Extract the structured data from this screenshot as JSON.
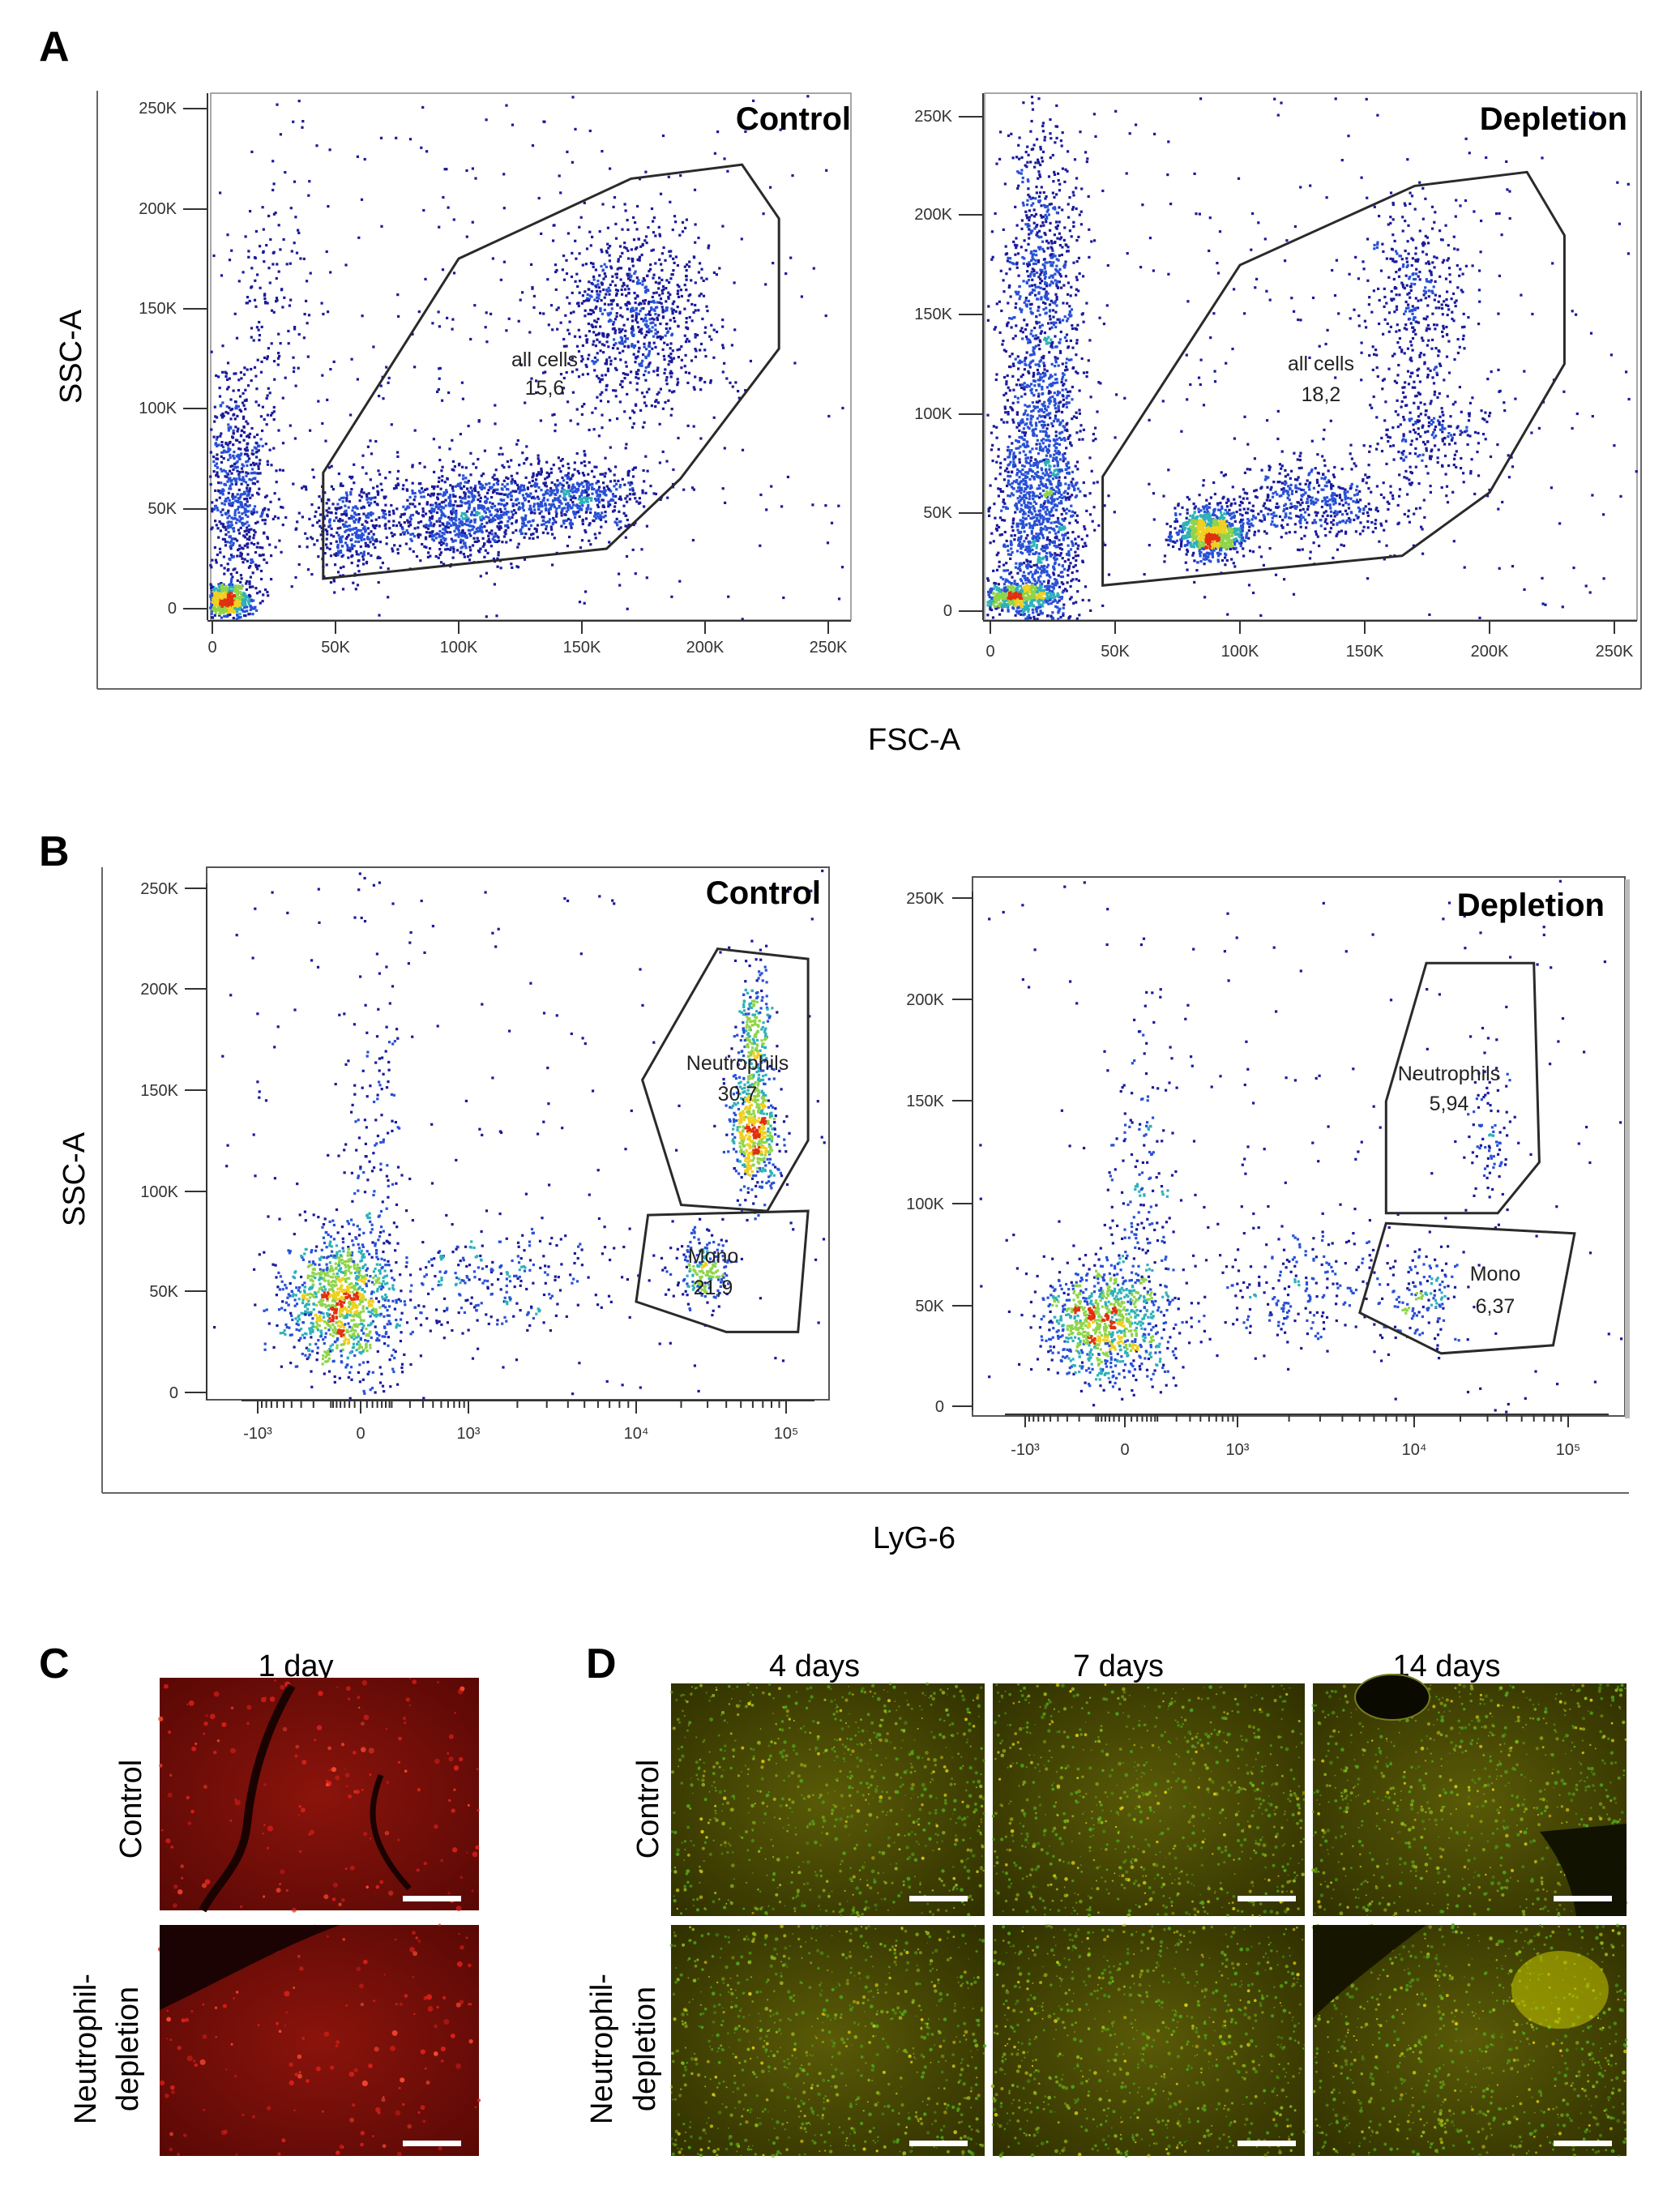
{
  "panels": {
    "A": {
      "letter": "A",
      "y_axis_title": "SSC-A",
      "x_axis_title": "FSC-A",
      "plots": [
        {
          "title": "Control",
          "gate_name": "all cells",
          "gate_value": "15,6"
        },
        {
          "title": "Depletion",
          "gate_name": "all cells",
          "gate_value": "18,2"
        }
      ],
      "y_ticks": [
        "0",
        "50K",
        "100K",
        "150K",
        "200K",
        "250K"
      ],
      "x_ticks": [
        "0",
        "50K",
        "100K",
        "150K",
        "200K",
        "250K"
      ]
    },
    "B": {
      "letter": "B",
      "y_axis_title": "SSC-A",
      "x_axis_title": "LyG-6",
      "plots": [
        {
          "title": "Control",
          "gates": [
            {
              "name": "Neutrophils",
              "value": "30,7"
            },
            {
              "name": "Mono",
              "value": "21,9"
            }
          ]
        },
        {
          "title": "Depletion",
          "gates": [
            {
              "name": "Neutrophils",
              "value": "5,94"
            },
            {
              "name": "Mono",
              "value": "6,37"
            }
          ]
        }
      ],
      "y_ticks": [
        "0",
        "50K",
        "100K",
        "150K",
        "200K",
        "250K"
      ],
      "x_ticks": [
        "-10³",
        "0",
        "10³",
        "10⁴",
        "10⁵"
      ]
    },
    "C": {
      "letter": "C",
      "column_label": "1 day",
      "row_labels": [
        "Control",
        "Neutrophil-",
        "depletion"
      ]
    },
    "D": {
      "letter": "D",
      "column_labels": [
        "4 days",
        "7 days",
        "14 days"
      ],
      "row_labels": [
        "Control",
        "Neutrophil-",
        "depletion"
      ]
    }
  },
  "chart_data": [
    {
      "panel": "A",
      "type": "scatter",
      "subtype": "flow-cytometry-density",
      "title": "Control",
      "xlabel": "FSC-A",
      "ylabel": "SSC-A",
      "xlim": [
        0,
        260000
      ],
      "ylim": [
        0,
        260000
      ],
      "ticks": [
        0,
        50000,
        100000,
        150000,
        200000,
        250000
      ],
      "gate": {
        "name": "all cells",
        "percent": 15.6,
        "polygon": [
          [
            45000,
            15000
          ],
          [
            45000,
            68000
          ],
          [
            100000,
            175000
          ],
          [
            170000,
            215000
          ],
          [
            215000,
            222000
          ],
          [
            230000,
            195000
          ],
          [
            230000,
            130000
          ],
          [
            190000,
            65000
          ],
          [
            160000,
            30000
          ]
        ]
      },
      "clusters": [
        {
          "x": 5000,
          "y": 5000,
          "sx": 5000,
          "sy": 4000,
          "n": 600
        },
        {
          "x": 10000,
          "y": 60000,
          "sx": 7000,
          "sy": 30000,
          "n": 700
        },
        {
          "x": 55000,
          "y": 40000,
          "sx": 9000,
          "sy": 12000,
          "n": 350
        },
        {
          "x": 100000,
          "y": 48000,
          "sx": 16000,
          "sy": 12000,
          "n": 800
        },
        {
          "x": 145000,
          "y": 56000,
          "sx": 16000,
          "sy": 9000,
          "n": 600
        },
        {
          "x": 170000,
          "y": 145000,
          "sx": 16000,
          "sy": 25000,
          "n": 850
        },
        {
          "x": 25000,
          "y": 160000,
          "sx": 8000,
          "sy": 30000,
          "n": 120
        },
        {
          "x": 130000,
          "y": 130000,
          "sx": 70000,
          "sy": 60000,
          "n": 200
        }
      ]
    },
    {
      "panel": "A",
      "type": "scatter",
      "subtype": "flow-cytometry-density",
      "title": "Depletion",
      "xlabel": "FSC-A",
      "ylabel": "SSC-A",
      "xlim": [
        0,
        260000
      ],
      "ylim": [
        0,
        260000
      ],
      "ticks": [
        0,
        50000,
        100000,
        150000,
        200000,
        250000
      ],
      "gate": {
        "name": "all cells",
        "percent": 18.2,
        "polygon": [
          [
            45000,
            13000
          ],
          [
            45000,
            68000
          ],
          [
            100000,
            175000
          ],
          [
            170000,
            215000
          ],
          [
            215000,
            222000
          ],
          [
            230000,
            190000
          ],
          [
            230000,
            125000
          ],
          [
            200000,
            60000
          ],
          [
            165000,
            28000
          ]
        ]
      },
      "clusters": [
        {
          "x": 20000,
          "y": 55000,
          "sx": 9000,
          "sy": 40000,
          "n": 1600
        },
        {
          "x": 20000,
          "y": 170000,
          "sx": 8000,
          "sy": 40000,
          "n": 700
        },
        {
          "x": 10000,
          "y": 8000,
          "sx": 7000,
          "sy": 4000,
          "n": 500
        },
        {
          "x": 88000,
          "y": 40000,
          "sx": 7000,
          "sy": 6000,
          "n": 900
        },
        {
          "x": 125000,
          "y": 55000,
          "sx": 20000,
          "sy": 10000,
          "n": 500
        },
        {
          "x": 170000,
          "y": 160000,
          "sx": 10000,
          "sy": 22000,
          "n": 350
        },
        {
          "x": 175000,
          "y": 90000,
          "sx": 12000,
          "sy": 15000,
          "n": 250
        },
        {
          "x": 130000,
          "y": 130000,
          "sx": 75000,
          "sy": 65000,
          "n": 150
        }
      ]
    },
    {
      "panel": "B",
      "type": "scatter",
      "subtype": "flow-cytometry-density",
      "title": "Control",
      "xlabel": "LyG-6",
      "ylabel": "SSC-A",
      "xlim": [
        -1500,
        150000
      ],
      "ylim": [
        0,
        260000
      ],
      "yticks": [
        0,
        50000,
        100000,
        150000,
        200000,
        250000
      ],
      "xticks": [
        -1000,
        0,
        1000,
        10000,
        100000
      ],
      "gates": [
        {
          "name": "Neutrophils",
          "percent": 30.7,
          "polygon": [
            [
              11000,
              155000
            ],
            [
              35000,
              220000
            ],
            [
              140000,
              215000
            ],
            [
              140000,
              125000
            ],
            [
              75000,
              90000
            ],
            [
              20000,
              93000
            ]
          ]
        },
        {
          "name": "Mono",
          "percent": 21.9,
          "polygon": [
            [
              12000,
              88000
            ],
            [
              140000,
              90000
            ],
            [
              120000,
              30000
            ],
            [
              40000,
              30000
            ],
            [
              10000,
              45000
            ]
          ]
        }
      ],
      "clusters": [
        {
          "x": -60,
          "y": 45000,
          "sx": 90,
          "sy": 18000,
          "n": 1100
        },
        {
          "x": 35,
          "y": 120000,
          "sx": 60,
          "sy": 45000,
          "n": 160
        },
        {
          "x": 1500,
          "y": 55000,
          "sx": 2500,
          "sy": 14000,
          "n": 250
        },
        {
          "x": 28000,
          "y": 62000,
          "sx": 8000,
          "sy": 9000,
          "n": 200
        },
        {
          "x": 60000,
          "y": 130000,
          "sx": 12000,
          "sy": 15000,
          "n": 550
        },
        {
          "x": 60000,
          "y": 180000,
          "sx": 10000,
          "sy": 15000,
          "n": 220
        }
      ]
    },
    {
      "panel": "B",
      "type": "scatter",
      "subtype": "flow-cytometry-density",
      "title": "Depletion",
      "xlabel": "LyG-6",
      "ylabel": "SSC-A",
      "xlim": [
        -1500,
        150000
      ],
      "ylim": [
        0,
        260000
      ],
      "yticks": [
        0,
        50000,
        100000,
        150000,
        200000,
        250000
      ],
      "xticks": [
        -1000,
        0,
        1000,
        10000,
        100000
      ],
      "gates": [
        {
          "name": "Neutrophils",
          "percent": 5.94,
          "polygon": [
            [
              7000,
              150000
            ],
            [
              12000,
              218000
            ],
            [
              60000,
              218000
            ],
            [
              65000,
              120000
            ],
            [
              35000,
              95000
            ],
            [
              7000,
              95000
            ]
          ]
        },
        {
          "name": "Mono",
          "percent": 6.37,
          "polygon": [
            [
              7000,
              90000
            ],
            [
              110000,
              85000
            ],
            [
              80000,
              30000
            ],
            [
              15000,
              26000
            ],
            [
              5000,
              46000
            ]
          ]
        }
      ],
      "clusters": [
        {
          "x": -60,
          "y": 42000,
          "sx": 100,
          "sy": 15000,
          "n": 1000
        },
        {
          "x": 40,
          "y": 100000,
          "sx": 70,
          "sy": 40000,
          "n": 170
        },
        {
          "x": 2500,
          "y": 60000,
          "sx": 3000,
          "sy": 15000,
          "n": 240
        },
        {
          "x": 12000,
          "y": 55000,
          "sx": 4000,
          "sy": 12000,
          "n": 120
        },
        {
          "x": 30000,
          "y": 140000,
          "sx": 8000,
          "sy": 20000,
          "n": 90
        }
      ]
    }
  ],
  "colors": {
    "gate_stroke": "#2a2a2a",
    "density": [
      "#1a1a9a",
      "#2850d6",
      "#2fb0b8",
      "#8fd44a",
      "#f0d020",
      "#e03010"
    ],
    "micro_red": "#7a0c08",
    "micro_yellow": "#4a4a00",
    "scale_bar": "#ffffff"
  }
}
